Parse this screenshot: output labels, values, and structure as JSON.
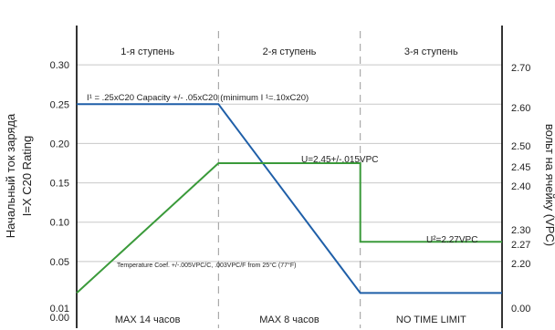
{
  "chart_data": {
    "type": "line",
    "left_axis": {
      "label_lines": [
        "Начальный ток заряда",
        "I=X C20 Rating"
      ],
      "ticks": [
        {
          "value": 0.0,
          "label": "0.00"
        },
        {
          "value": 0.01,
          "label": "0.01"
        },
        {
          "value": 0.05,
          "label": "0.05"
        },
        {
          "value": 0.1,
          "label": "0.10"
        },
        {
          "value": 0.15,
          "label": "0.15"
        },
        {
          "value": 0.2,
          "label": "0.20"
        },
        {
          "value": 0.25,
          "label": "0.25"
        },
        {
          "value": 0.3,
          "label": "0.30"
        }
      ],
      "ylim": [
        0,
        0.35
      ]
    },
    "right_axis": {
      "label": "вольт на ячейку (VPC)",
      "ticks": [
        {
          "value": 0.0,
          "label": "0.00"
        },
        {
          "value": 2.2,
          "label": "2.20"
        },
        {
          "value": 2.27,
          "label": "2.27"
        },
        {
          "value": 2.3,
          "label": "2.30"
        },
        {
          "value": 2.4,
          "label": "2.40"
        },
        {
          "value": 2.45,
          "label": "2.45"
        },
        {
          "value": 2.5,
          "label": "2.50"
        },
        {
          "value": 2.6,
          "label": "2.60"
        },
        {
          "value": 2.7,
          "label": "2.70"
        }
      ]
    },
    "stages": [
      {
        "label": "1-я ступень",
        "duration": "MAX 14 часов"
      },
      {
        "label": "2-я ступень",
        "duration": "MAX 8 часов"
      },
      {
        "label": "3-я ступень",
        "duration": "NO TIME LIMIT"
      }
    ],
    "annotations": {
      "current": "I¹ = .25xC20 Capacity +/- .05xC20 (minimum I      ¹=.10xC20)",
      "absorption_voltage": "U=2.45+/-.015VPC",
      "float_voltage": "U²=2.27VPC",
      "temperature": "Temperature Coef. +/-.005VPC/C, .003VPC/F from 25°C (77°F)"
    },
    "series": [
      {
        "name": "current",
        "color": "#1f5fa8",
        "points": [
          [
            0,
            0.25
          ],
          [
            1,
            0.25
          ],
          [
            2,
            0.01
          ],
          [
            3,
            0.01
          ]
        ]
      },
      {
        "name": "voltage",
        "color": "#3a9a3a",
        "points": [
          [
            0,
            0.01
          ],
          [
            1,
            0.175
          ],
          [
            2,
            0.175
          ],
          [
            2,
            0.075
          ],
          [
            3,
            0.075
          ]
        ]
      }
    ]
  }
}
